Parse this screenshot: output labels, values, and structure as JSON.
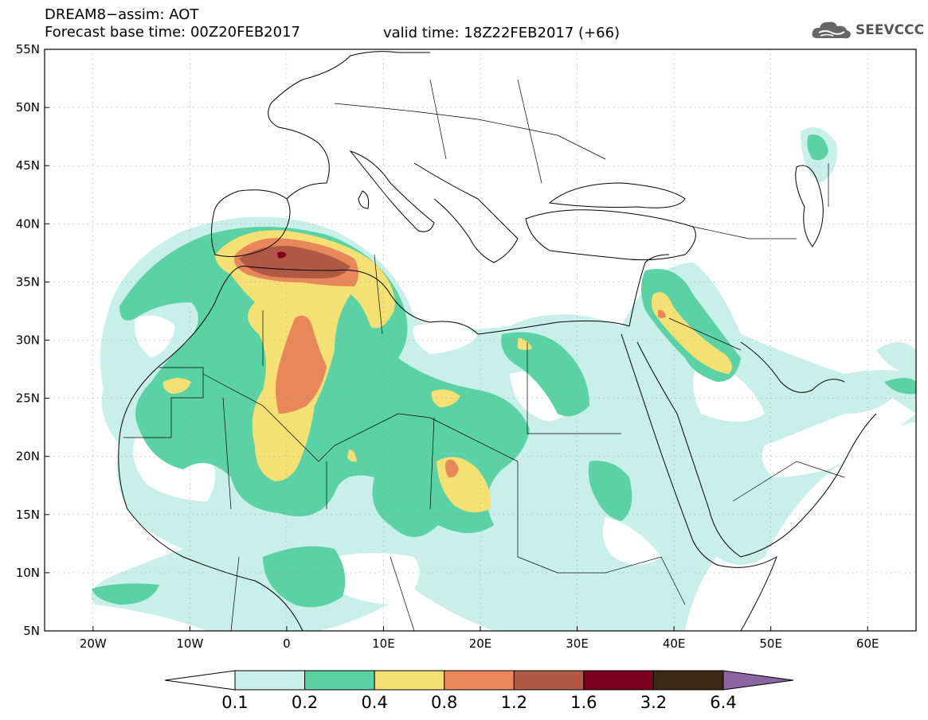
{
  "header": {
    "title_line1": "DREAM8−assim: AOT",
    "title_line2": "Forecast base time: 00Z20FEB2017",
    "valid_time": "valid time: 18Z22FEB2017 (+66)",
    "logo_text": "SEEVCCC",
    "logo_icon": "cloud-logo-icon"
  },
  "map": {
    "lat_labels": [
      "55N",
      "50N",
      "45N",
      "40N",
      "35N",
      "30N",
      "25N",
      "20N",
      "15N",
      "10N",
      "5N"
    ],
    "lon_labels": [
      "20W",
      "10W",
      "0",
      "10E",
      "20E",
      "30E",
      "40E",
      "50E",
      "60E"
    ],
    "lat_range": [
      5,
      55
    ],
    "lon_range": [
      -25,
      65
    ],
    "grid": "dotted"
  },
  "colorbar": {
    "labels": [
      "0.1",
      "0.2",
      "0.4",
      "0.8",
      "1.2",
      "1.6",
      "3.2",
      "6.4"
    ],
    "colors": [
      "#ffffff",
      "#c8f0e8",
      "#5ad2a5",
      "#f5e173",
      "#e8885a",
      "#b05a46",
      "#7d0020",
      "#3c2814",
      "#8c64a0"
    ]
  },
  "colors": {
    "c1": "#c8f0e8",
    "c2": "#5ad2a5",
    "c3": "#f5e173",
    "c4": "#e8885a",
    "c5": "#b05a46",
    "c6": "#7d0020"
  }
}
